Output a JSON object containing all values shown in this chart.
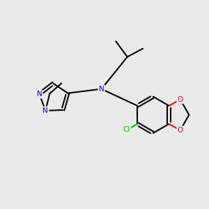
{
  "background_color": "#eaeaea",
  "bond_color": "#000000",
  "N_color": "#0000ff",
  "O_color": "#ff0000",
  "Cl_color": "#00bb00",
  "line_width": 1.5,
  "figsize": [
    3.0,
    3.0
  ],
  "dpi": 100,
  "xlim": [
    0,
    10
  ],
  "ylim": [
    0,
    10
  ]
}
